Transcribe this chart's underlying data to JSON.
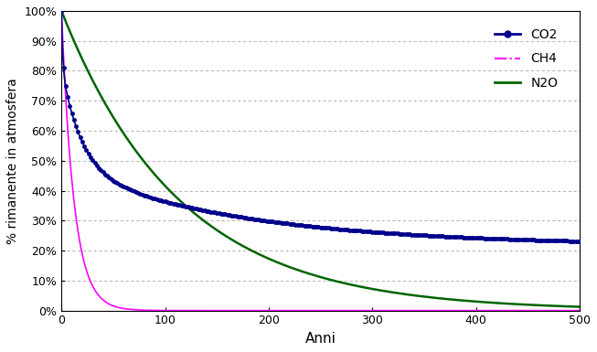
{
  "title": "",
  "xlabel": "Anni",
  "ylabel": "% rimanente in atmosfera",
  "xlim": [
    0,
    500
  ],
  "ylim": [
    0,
    1.0
  ],
  "ytick_labels": [
    "0%",
    "10%",
    "20%",
    "30%",
    "40%",
    "50%",
    "60%",
    "70%",
    "80%",
    "90%",
    "100%"
  ],
  "ytick_values": [
    0,
    0.1,
    0.2,
    0.3,
    0.4,
    0.5,
    0.6,
    0.7,
    0.8,
    0.9,
    1.0
  ],
  "xtick_values": [
    0,
    100,
    200,
    300,
    400,
    500
  ],
  "co2_color": "#00008B",
  "ch4_color": "#FF00FF",
  "n2o_color": "#006400",
  "background_color": "#ffffff",
  "grid_color": "#aaaaaa",
  "legend_labels": [
    "CO2",
    "CH4",
    "N2O"
  ],
  "co2_a0": 0.217,
  "co2_a1": 0.259,
  "co2_a2": 0.338,
  "co2_a3": 0.186,
  "co2_tau1": 172.9,
  "co2_tau2": 18.51,
  "co2_tau3": 1.186,
  "ch4_tau": 12.0,
  "n2o_tau": 114.0,
  "marker_interval": 2,
  "co2_linewidth": 1.2,
  "n2o_linewidth": 1.8,
  "ch4_linewidth": 1.2,
  "marker_size": 2.5
}
